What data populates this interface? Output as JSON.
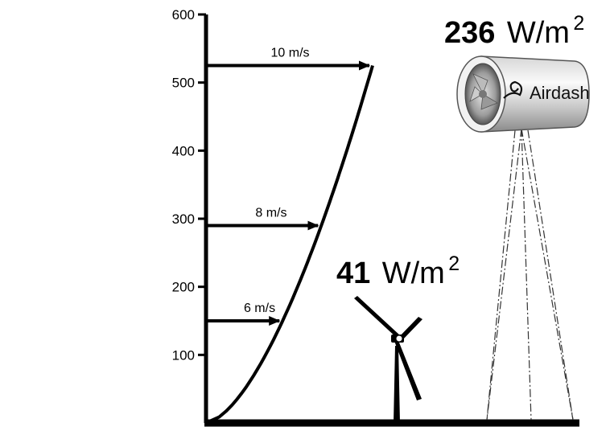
{
  "chart_data": {
    "type": "line",
    "y_ticks": [
      "100",
      "200",
      "300",
      "400",
      "500",
      "600"
    ],
    "ylim": [
      0,
      600
    ],
    "grid": false,
    "arrows": [
      {
        "label": "6 m/s",
        "height": 150
      },
      {
        "label": "8 m/s",
        "height": 290
      },
      {
        "label": "10 m/s",
        "height": 525
      }
    ],
    "series": [
      {
        "x": [
          0,
          6,
          8,
          10
        ],
        "y": [
          0,
          150,
          290,
          525
        ]
      }
    ]
  },
  "annotations": {
    "turbine_power": {
      "number": "41",
      "unit": "W/m",
      "sup": "2"
    },
    "airdash_power": {
      "number": "236",
      "unit": "W/m",
      "sup": "2"
    },
    "airdash_brand": "Airdash"
  }
}
